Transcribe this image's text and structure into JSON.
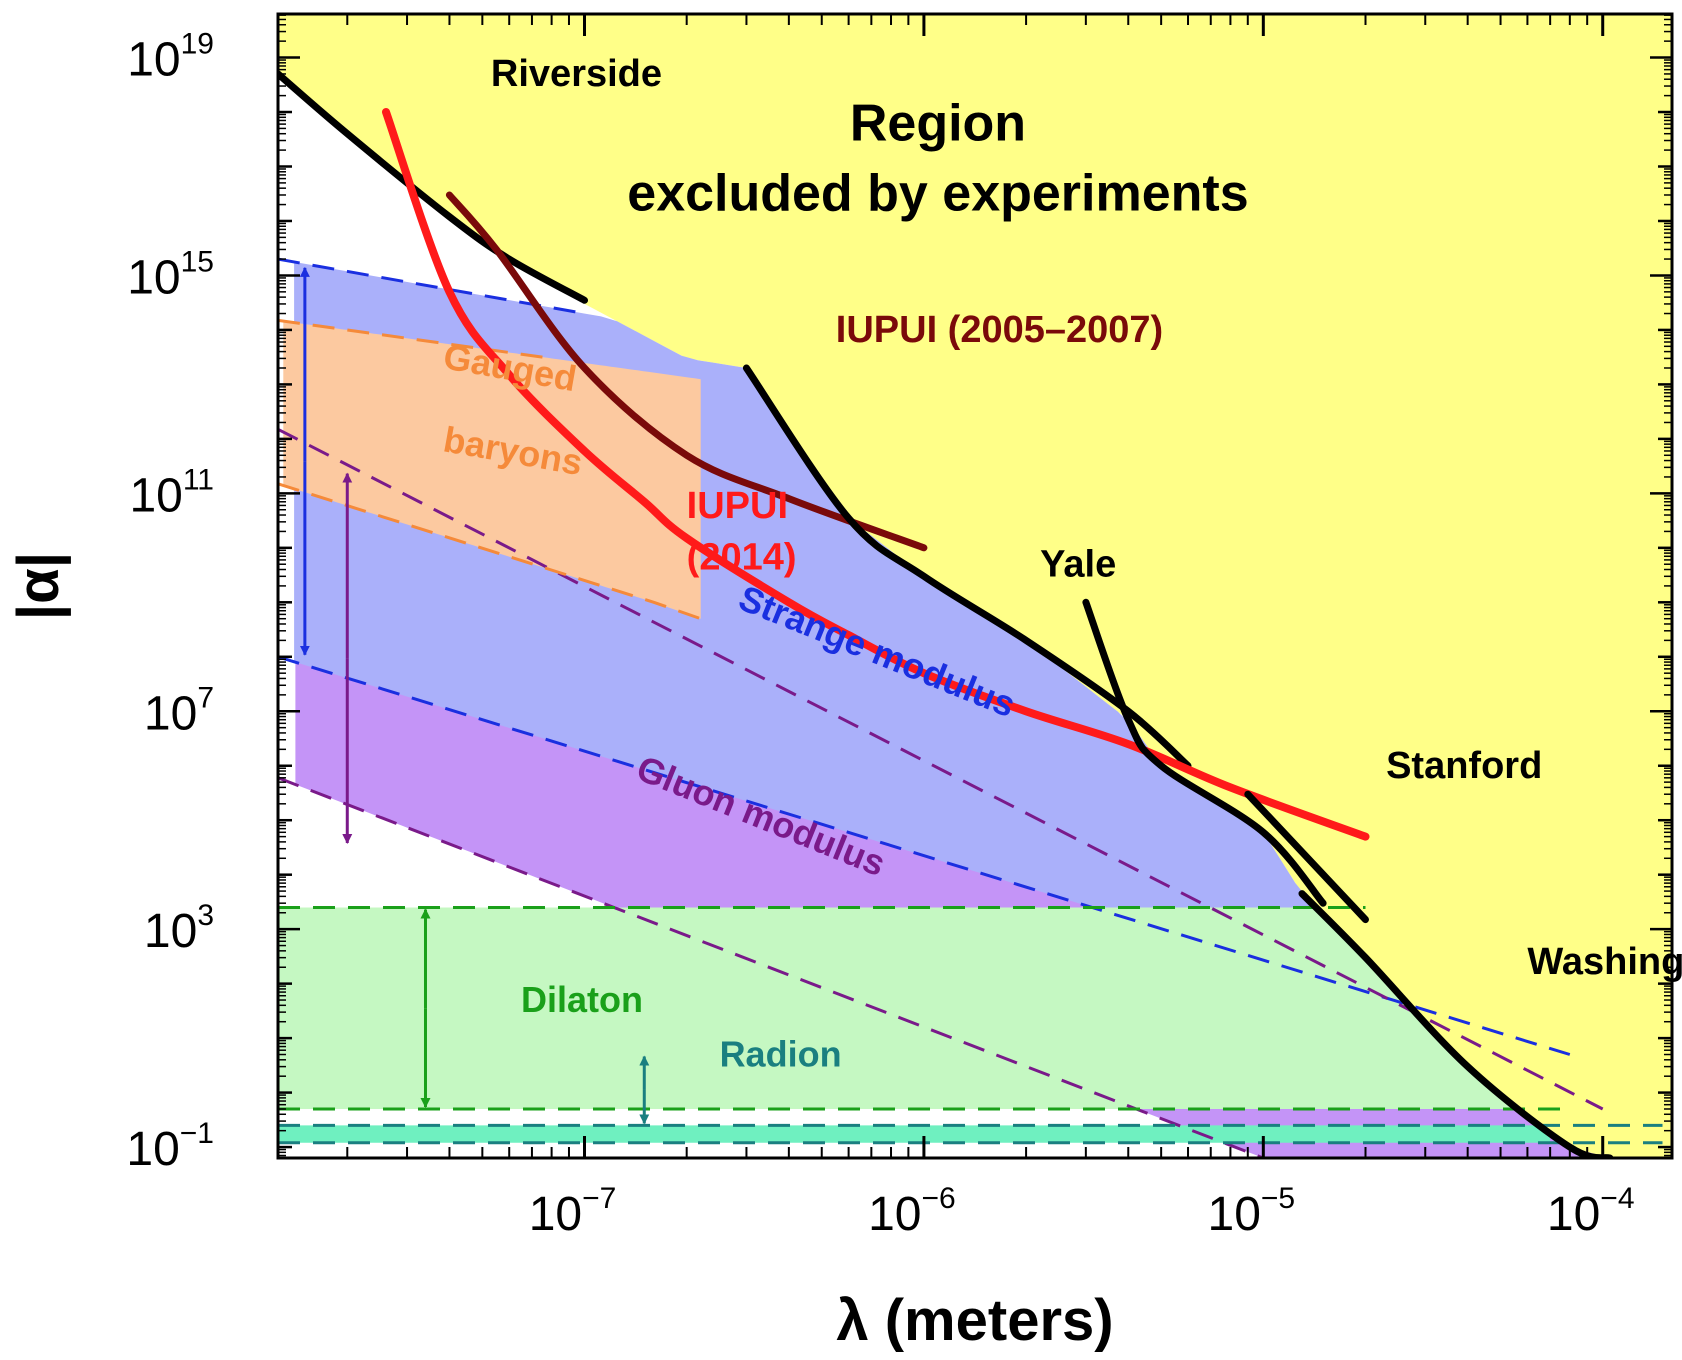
{
  "chart_data": {
    "type": "line",
    "title": "",
    "xlabel": "λ (meters)",
    "ylabel": "|α|",
    "x_scale": "log",
    "y_scale": "log",
    "xlim": [
      1.25e-08,
      0.00016
    ],
    "ylim": [
      0.063,
      6.3e+19
    ],
    "grid": false,
    "legend": "none",
    "x_ticks": [
      {
        "value": 1e-07,
        "base": "10",
        "exp": "−7"
      },
      {
        "value": 1e-06,
        "base": "10",
        "exp": "−6"
      },
      {
        "value": 1e-05,
        "base": "10",
        "exp": "−5"
      },
      {
        "value": 0.0001,
        "base": "10",
        "exp": "−4"
      }
    ],
    "y_ticks": [
      {
        "value": 1e+19,
        "base": "10",
        "exp": "19"
      },
      {
        "value": 1000000000000000.0,
        "base": "10",
        "exp": "15"
      },
      {
        "value": 100000000000.0,
        "base": "10",
        "exp": "11"
      },
      {
        "value": 10000000.0,
        "base": "10",
        "exp": "7"
      },
      {
        "value": 1000.0,
        "base": "10",
        "exp": "3"
      },
      {
        "value": 0.1,
        "base": "10",
        "exp": "−1"
      }
    ],
    "colors": {
      "excluded": "#ffff88",
      "strange": "#aab0fa",
      "gluon": "#c494f7",
      "gauged": "#fcc9a0",
      "dilaton": "#c5f8c2",
      "radion": "#6ff0c0",
      "black": "#000000",
      "red": "#ff1a1a",
      "maroon": "#7a0a0a",
      "blue": "#1a2fe0",
      "purple": "#7a1a8a",
      "orange": "#f58a3a",
      "green": "#1aa01a",
      "teal": "#1a7f80"
    },
    "series": [
      {
        "name": "Riverside",
        "kind": "constraint",
        "color": "black",
        "points": [
          [
            1.25e-08,
            5e+18
          ],
          [
            2e-08,
            4e+17
          ],
          [
            4e-08,
            1.2e+16
          ],
          [
            6e-08,
            2000000000000000.0
          ],
          [
            1e-07,
            350000000000000.0
          ]
        ]
      },
      {
        "name": "IUPUI (2005–2007)",
        "kind": "constraint",
        "color": "maroon",
        "points": [
          [
            4e-08,
            3e+16
          ],
          [
            5.5e-08,
            3000000000000000.0
          ],
          [
            1e-07,
            20000000000000.0
          ],
          [
            2e-07,
            500000000000.0
          ],
          [
            4e-07,
            80000000000.0
          ],
          [
            1e-06,
            10000000000.0
          ]
        ]
      },
      {
        "name": "Yale",
        "kind": "constraint",
        "color": "black",
        "points": [
          [
            3e-07,
            20000000000000.0
          ],
          [
            6e-07,
            35000000000.0
          ],
          [
            1e-06,
            3000000000.0
          ],
          [
            2e-06,
            200000000.0
          ],
          [
            4e-06,
            10000000.0
          ],
          [
            6e-06,
            1000000.0
          ]
        ]
      },
      {
        "name": "IUPUI (2014)",
        "kind": "constraint",
        "color": "red",
        "points": [
          [
            2.6e-08,
            1e+18
          ],
          [
            4e-08,
            500000000000000.0
          ],
          [
            6e-08,
            15000000000000.0
          ],
          [
            1e-07,
            600000000000.0
          ],
          [
            1.5e-07,
            70000000000.0
          ],
          [
            2e-07,
            15000000000.0
          ],
          [
            4e-07,
            1000000000.0
          ],
          [
            6e-07,
            250000000.0
          ],
          [
            1e-06,
            50000000.0
          ],
          [
            2e-06,
            10000000.0
          ],
          [
            4e-06,
            2500000.0
          ],
          [
            8e-06,
            400000.0
          ],
          [
            2e-05,
            50000.0
          ]
        ]
      },
      {
        "name": "Stanford",
        "kind": "constraint",
        "color": "black",
        "points": [
          [
            3e-06,
            1000000000.0
          ],
          [
            4e-06,
            7000000.0
          ],
          [
            5e-06,
            1000000.0
          ],
          [
            1e-05,
            60000.0
          ],
          [
            1.5e-05,
            3000.0
          ]
        ]
      },
      {
        "name": "Washington",
        "kind": "constraint",
        "color": "black",
        "points": [
          [
            9e-06,
            300000.0
          ],
          [
            2e-05,
            1500.0
          ]
        ]
      },
      {
        "name": "",
        "kind": "constraint",
        "color": "black",
        "points": [
          [
            1.3e-05,
            4500.0
          ],
          [
            2e-05,
            300.0
          ],
          [
            4e-05,
            3
          ],
          [
            8e-05,
            0.1
          ],
          [
            0.000105,
            0.063
          ]
        ]
      },
      {
        "name": "Strange modulus",
        "kind": "band",
        "color": "strange",
        "upper": [
          [
            1.25e-08,
            2000000000000000.0
          ],
          [
            1e-07,
            200000000000000.0
          ]
        ],
        "lower": [
          [
            1.25e-08,
            100000000.0
          ],
          [
            8e-05,
            5
          ]
        ]
      },
      {
        "name": "Gluon modulus",
        "kind": "band",
        "color": "gluon",
        "upper": [
          [
            1.25e-08,
            1500000000000.0
          ],
          [
            0.0001,
            0.5
          ]
        ],
        "lower": [
          [
            1.25e-08,
            600000.0
          ],
          [
            1e-05,
            0.063
          ]
        ]
      },
      {
        "name": "Gauged baryons",
        "kind": "band",
        "color": "gauged",
        "upper": [
          [
            1.25e-08,
            150000000000000.0
          ],
          [
            8e-08,
            30000000000000.0
          ]
        ],
        "lower": [
          [
            1.25e-08,
            150000000000.0
          ],
          [
            1.6e-07,
            1000000000.0
          ],
          [
            2.2e-07,
            500000000.0
          ]
        ]
      },
      {
        "name": "Dilaton",
        "kind": "band",
        "color": "dilaton",
        "upper": [
          [
            1.25e-08,
            2500.0
          ],
          [
            2e-05,
            2500.0
          ]
        ],
        "lower": [
          [
            1.25e-08,
            0.5
          ],
          [
            8e-05,
            0.5
          ]
        ]
      },
      {
        "name": "Radion",
        "kind": "band",
        "color": "radion",
        "upper": [
          [
            1.25e-08,
            0.25
          ],
          [
            0.00015,
            0.25
          ]
        ],
        "lower": [
          [
            1.25e-08,
            0.12
          ],
          [
            0.00015,
            0.12
          ]
        ]
      }
    ],
    "annotations": [
      {
        "id": "region",
        "lines": [
          "Region",
          "excluded by experiments"
        ],
        "x": 1.1e-06,
        "y": 3e+17,
        "size": 52,
        "color": "black",
        "rotate": 0
      },
      {
        "id": "riverside",
        "lines": [
          "Riverside"
        ],
        "x": 5.3e-08,
        "y": 3e+18,
        "size": 38,
        "color": "black",
        "rotate": 0
      },
      {
        "id": "iupui-old",
        "lines": [
          "IUPUI (2005–2007)"
        ],
        "x": 5.5e-07,
        "y": 60000000000000.0,
        "size": 38,
        "color": "maroon",
        "rotate": 0
      },
      {
        "id": "iupui-new",
        "lines": [
          "IUPUI",
          "(2014)"
        ],
        "x": 2e-07,
        "y": 35000000000.0,
        "size": 38,
        "color": "red",
        "rotate": 0
      },
      {
        "id": "yale",
        "lines": [
          "Yale"
        ],
        "x": 2.2e-06,
        "y": 3000000000.0,
        "size": 38,
        "color": "black",
        "rotate": 0
      },
      {
        "id": "stanford",
        "lines": [
          "Stanford"
        ],
        "x": 2.3e-05,
        "y": 600000.0,
        "size": 38,
        "color": "black",
        "rotate": 0
      },
      {
        "id": "washington",
        "lines": [
          "Washington"
        ],
        "x": 6e-05,
        "y": 150,
        "size": 38,
        "color": "black",
        "rotate": 0
      },
      {
        "id": "gauged",
        "lines": [
          "Gauged"
        ],
        "x": 3.8e-08,
        "y": 20000000000000.0,
        "size": 36,
        "color": "orange",
        "rotate": 10
      },
      {
        "id": "baryons",
        "lines": [
          "baryons"
        ],
        "x": 3.8e-08,
        "y": 600000000000.0,
        "size": 36,
        "color": "orange",
        "rotate": 10
      },
      {
        "id": "strange",
        "lines": [
          "Strange modulus"
        ],
        "x": 2.8e-07,
        "y": 800000000.0,
        "size": 36,
        "color": "blue",
        "rotate": 22
      },
      {
        "id": "gluon",
        "lines": [
          "Gluon modulus"
        ],
        "x": 1.4e-07,
        "y": 600000.0,
        "size": 36,
        "color": "purple",
        "rotate": 22
      },
      {
        "id": "dilaton",
        "lines": [
          "Dilaton"
        ],
        "x": 6.5e-08,
        "y": 30,
        "size": 36,
        "color": "green",
        "rotate": 0
      },
      {
        "id": "radion",
        "lines": [
          "Radion"
        ],
        "x": 2.5e-07,
        "y": 3,
        "size": 36,
        "color": "teal",
        "rotate": 0
      }
    ],
    "arrows": [
      {
        "band": "Strange modulus",
        "x": 1.5e-08,
        "y1": 1500000000000000.0,
        "y2": 100000000.0,
        "color": "blue"
      },
      {
        "band": "Gluon modulus",
        "x": 2e-08,
        "y1": 250000000000.0,
        "y2": 35000.0,
        "color": "purple"
      },
      {
        "band": "Dilaton",
        "x": 3.4e-08,
        "y1": 2500.0,
        "y2": 0.5,
        "color": "green"
      },
      {
        "band": "Radion",
        "x": 1.5e-07,
        "y1": 5,
        "y2": 0.25,
        "color": "teal"
      }
    ]
  }
}
